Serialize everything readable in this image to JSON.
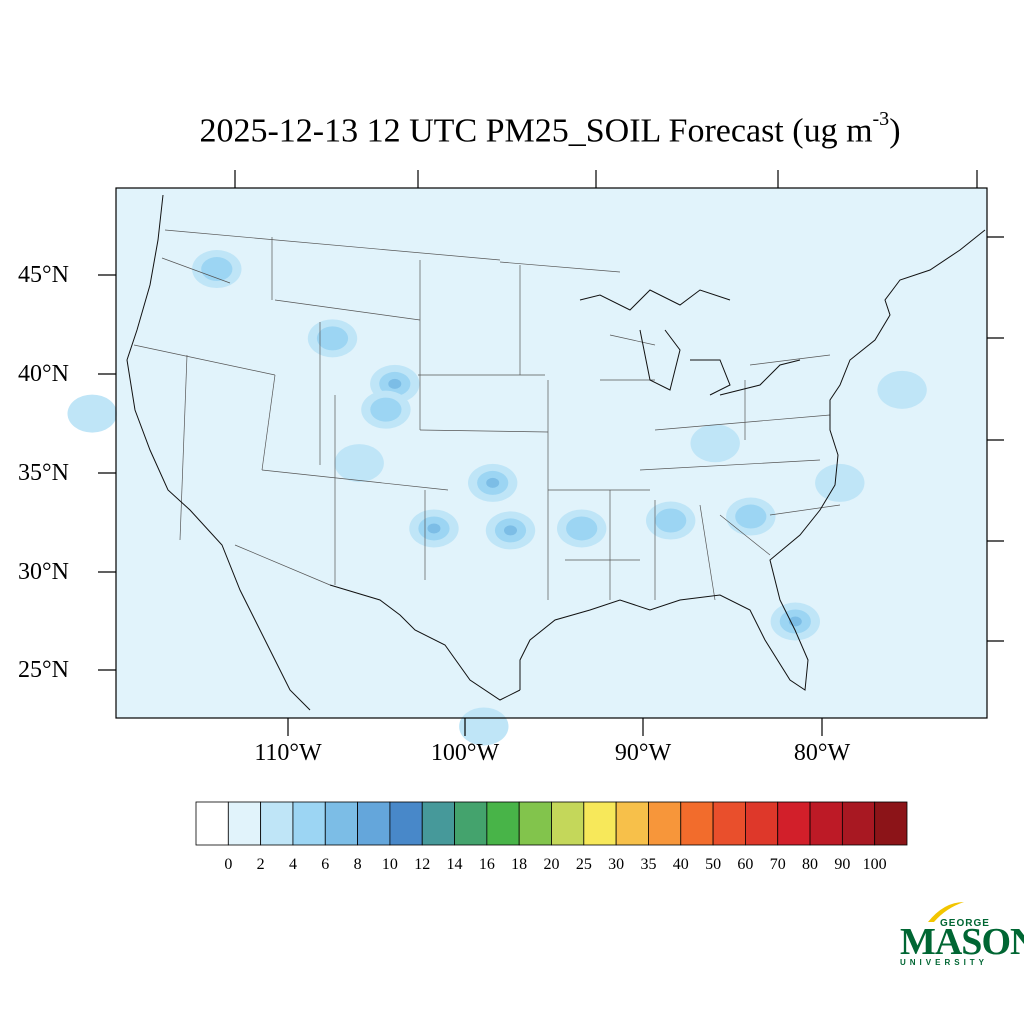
{
  "title": {
    "main": "2025-12-13 12 UTC PM25_SOIL Forecast (ug m",
    "exp": "-3",
    "close": ")"
  },
  "lat_labels": [
    "45°N",
    "40°N",
    "35°N",
    "30°N",
    "25°N"
  ],
  "lon_labels": [
    "110°W",
    "100°W",
    "90°W",
    "80°W"
  ],
  "colorbar": {
    "labels": [
      "0",
      "2",
      "4",
      "6",
      "8",
      "10",
      "12",
      "14",
      "16",
      "18",
      "20",
      "25",
      "30",
      "35",
      "40",
      "50",
      "60",
      "70",
      "80",
      "90",
      "100"
    ],
    "colors": [
      "#ffffff",
      "#e1f3fb",
      "#bfe5f7",
      "#9cd5f3",
      "#7cbde6",
      "#64a6db",
      "#4888c9",
      "#46999a",
      "#44a36d",
      "#48b448",
      "#82c44c",
      "#c4d75a",
      "#f7e85a",
      "#f7c04a",
      "#f7963a",
      "#f26c2c",
      "#e94f2c",
      "#de382a",
      "#d21f2a",
      "#bd1a26",
      "#a81822",
      "#8c1418"
    ]
  },
  "map": {
    "background": "#e1f3fb",
    "blobs": [
      {
        "lon": -101.8,
        "lat": 32.2,
        "level": 3
      },
      {
        "lon": -97.5,
        "lat": 32.1,
        "level": 3
      },
      {
        "lon": -98.5,
        "lat": 34.5,
        "level": 3
      },
      {
        "lon": -93.5,
        "lat": 32.2,
        "level": 2
      },
      {
        "lon": -88.5,
        "lat": 32.6,
        "level": 2
      },
      {
        "lon": -84.0,
        "lat": 32.8,
        "level": 2
      },
      {
        "lon": -81.5,
        "lat": 27.5,
        "level": 3
      },
      {
        "lon": -114.0,
        "lat": 45.3,
        "level": 2
      },
      {
        "lon": -107.5,
        "lat": 41.8,
        "level": 2
      },
      {
        "lon": -104.0,
        "lat": 39.5,
        "level": 3
      },
      {
        "lon": -104.5,
        "lat": 38.2,
        "level": 2
      },
      {
        "lon": -121.0,
        "lat": 38.0,
        "level": 1
      },
      {
        "lon": -106.0,
        "lat": 35.5,
        "level": 1
      },
      {
        "lon": -79.0,
        "lat": 34.5,
        "level": 1
      },
      {
        "lon": -86.0,
        "lat": 36.5,
        "level": 1
      },
      {
        "lon": -75.5,
        "lat": 39.2,
        "level": 1
      },
      {
        "lon": -99.0,
        "lat": 22.2,
        "level": 1
      }
    ]
  },
  "logo": {
    "top": "GEORGE",
    "main": "MASON",
    "bottom": "UNIVERSITY"
  }
}
